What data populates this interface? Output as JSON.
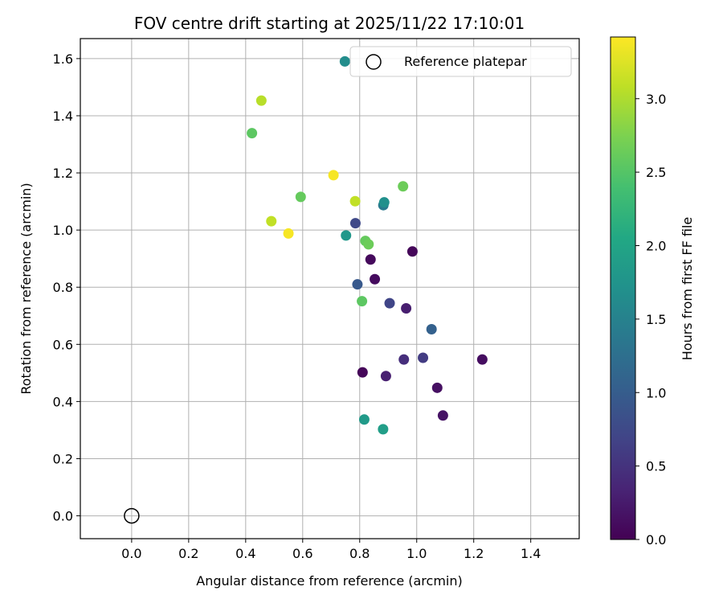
{
  "chart_data": {
    "type": "scatter",
    "title": "FOV centre drift starting at 2025/11/22 17:10:01",
    "xlabel": "Angular distance from reference (arcmin)",
    "ylabel": "Rotation from reference (arcmin)",
    "xlim": [
      -0.18,
      1.57
    ],
    "ylim": [
      -0.08,
      1.67
    ],
    "xticks": [
      "0.0",
      "0.2",
      "0.4",
      "0.6",
      "0.8",
      "1.0",
      "1.2",
      "1.4"
    ],
    "xtick_values": [
      0.0,
      0.2,
      0.4,
      0.6,
      0.8,
      1.0,
      1.2,
      1.4
    ],
    "yticks": [
      "0.0",
      "0.2",
      "0.4",
      "0.6",
      "0.8",
      "1.0",
      "1.2",
      "1.4",
      "1.6"
    ],
    "ytick_values": [
      0.0,
      0.2,
      0.4,
      0.6,
      0.8,
      1.0,
      1.2,
      1.4,
      1.6
    ],
    "grid": true,
    "legend": {
      "placement": "top-right",
      "entries": [
        "Reference platepar"
      ]
    },
    "reference_point": {
      "x": 0.0,
      "y": 0.0,
      "label": "Reference platepar"
    },
    "colorbar": {
      "label": "Hours from first FF file",
      "range": [
        0.0,
        3.42
      ],
      "ticks": [
        "0.0",
        "0.5",
        "1.0",
        "1.5",
        "2.0",
        "2.5",
        "3.0"
      ],
      "tick_values": [
        0.0,
        0.5,
        1.0,
        1.5,
        2.0,
        2.5,
        3.0
      ],
      "colormap": "viridis"
    },
    "points": [
      {
        "x": 0.985,
        "y": 0.925,
        "hours": 0.05
      },
      {
        "x": 0.838,
        "y": 0.897,
        "hours": 0.08
      },
      {
        "x": 0.853,
        "y": 0.828,
        "hours": 0.1
      },
      {
        "x": 1.23,
        "y": 0.547,
        "hours": 0.12
      },
      {
        "x": 1.072,
        "y": 0.448,
        "hours": 0.15
      },
      {
        "x": 1.092,
        "y": 0.351,
        "hours": 0.18
      },
      {
        "x": 0.81,
        "y": 0.502,
        "hours": 0.05
      },
      {
        "x": 0.892,
        "y": 0.489,
        "hours": 0.3
      },
      {
        "x": 0.963,
        "y": 0.726,
        "hours": 0.28
      },
      {
        "x": 0.955,
        "y": 0.547,
        "hours": 0.45
      },
      {
        "x": 1.022,
        "y": 0.553,
        "hours": 0.6
      },
      {
        "x": 0.905,
        "y": 0.744,
        "hours": 0.7
      },
      {
        "x": 0.785,
        "y": 1.024,
        "hours": 0.75
      },
      {
        "x": 0.792,
        "y": 0.81,
        "hours": 0.95
      },
      {
        "x": 1.052,
        "y": 0.653,
        "hours": 1.05
      },
      {
        "x": 0.883,
        "y": 1.087,
        "hours": 1.4
      },
      {
        "x": 0.748,
        "y": 1.59,
        "hours": 1.65
      },
      {
        "x": 0.886,
        "y": 1.097,
        "hours": 1.7
      },
      {
        "x": 0.752,
        "y": 0.981,
        "hours": 1.8
      },
      {
        "x": 0.816,
        "y": 0.337,
        "hours": 1.85
      },
      {
        "x": 0.882,
        "y": 0.303,
        "hours": 1.9
      },
      {
        "x": 0.808,
        "y": 0.751,
        "hours": 2.55
      },
      {
        "x": 0.82,
        "y": 0.962,
        "hours": 2.6
      },
      {
        "x": 0.831,
        "y": 0.95,
        "hours": 2.65
      },
      {
        "x": 0.952,
        "y": 1.153,
        "hours": 2.65
      },
      {
        "x": 0.593,
        "y": 1.116,
        "hours": 2.6
      },
      {
        "x": 0.422,
        "y": 1.339,
        "hours": 2.55
      },
      {
        "x": 0.455,
        "y": 1.453,
        "hours": 3.05
      },
      {
        "x": 0.49,
        "y": 1.031,
        "hours": 3.1
      },
      {
        "x": 0.784,
        "y": 1.101,
        "hours": 3.1
      },
      {
        "x": 0.708,
        "y": 1.192,
        "hours": 3.38
      },
      {
        "x": 0.55,
        "y": 0.988,
        "hours": 3.38
      }
    ]
  }
}
